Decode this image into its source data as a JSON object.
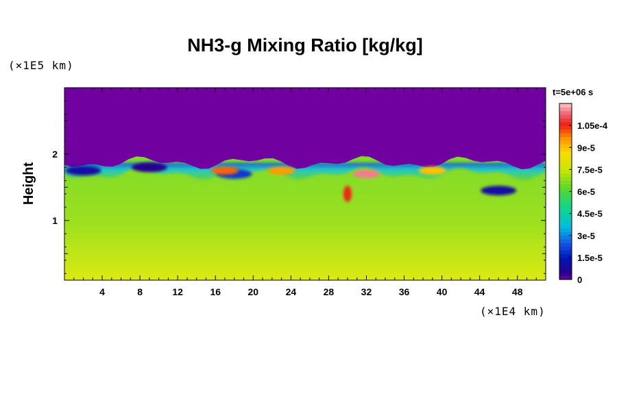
{
  "chart_data": {
    "type": "heatmap",
    "title": "NH3-g Mixing Ratio [kg/kg]",
    "ylabel": "Height",
    "xunit": "(×1E4 km)",
    "yunit": "(×1E5 km)",
    "time_label": "t=5e+06 s",
    "x_ticks": [
      "4",
      "8",
      "12",
      "16",
      "20",
      "24",
      "28",
      "32",
      "36",
      "40",
      "44",
      "48"
    ],
    "y_ticks": [
      "1",
      "2"
    ],
    "xlim": [
      0,
      51
    ],
    "ylim": [
      0.1,
      3.0
    ],
    "colorbar": {
      "ticks": [
        "0",
        "1.5e-5",
        "3e-5",
        "4.5e-5",
        "6e-5",
        "7.5e-5",
        "9e-5",
        "1.05e-4"
      ],
      "range": [
        0,
        0.00012
      ]
    },
    "field_description": {
      "upper_layer_value": 0,
      "boundary_height_approx": 1.85,
      "lower_layer_value_range": [
        6e-05,
        8e-05
      ],
      "depleted_eddies": [
        {
          "x": 2,
          "y": 1.75,
          "value": 1e-05
        },
        {
          "x": 9,
          "y": 1.8,
          "value": 5e-06
        },
        {
          "x": 18,
          "y": 1.7,
          "value": 2e-05
        },
        {
          "x": 46,
          "y": 1.45,
          "value": 1e-05
        }
      ],
      "enriched_eddies": [
        {
          "x": 17,
          "y": 1.75,
          "value": 0.0001
        },
        {
          "x": 23,
          "y": 1.75,
          "value": 9.5e-05
        },
        {
          "x": 30,
          "y": 1.4,
          "value": 0.000105
        },
        {
          "x": 32,
          "y": 1.7,
          "value": 0.000115
        },
        {
          "x": 39,
          "y": 1.75,
          "value": 9e-05
        }
      ]
    }
  }
}
